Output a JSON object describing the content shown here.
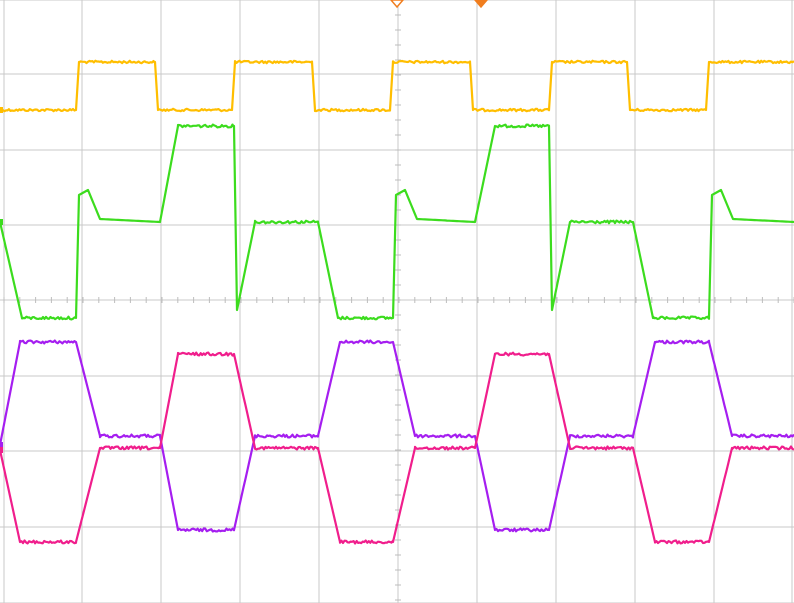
{
  "chart_data": {
    "type": "line",
    "title": "",
    "xlabel": "",
    "ylabel": "",
    "x_range": [
      0,
      794
    ],
    "grid": {
      "enabled": true,
      "color": "#c8c8c8",
      "vertical_divisions": [
        0,
        1,
        2,
        3,
        4,
        5,
        6,
        7,
        8,
        9,
        10
      ],
      "horizontal_divisions": [
        0,
        1,
        2,
        3,
        4,
        5,
        6,
        7,
        8
      ]
    },
    "trigger_markers": [
      {
        "name": "trigger-position-marker",
        "x": 397,
        "style": "hollow",
        "color": "#f07d1e"
      },
      {
        "name": "trigger-level-marker",
        "x": 481,
        "style": "filled",
        "color": "#f07d1e"
      }
    ],
    "series": [
      {
        "id": "ch1",
        "color": "#ffbe00",
        "noise": 1.2,
        "points": [
          [
            0,
            110
          ],
          [
            76,
            110
          ],
          [
            79,
            62
          ],
          [
            155,
            62
          ],
          [
            158,
            110
          ],
          [
            232,
            110
          ],
          [
            235,
            62
          ],
          [
            312,
            62
          ],
          [
            315,
            110
          ],
          [
            390,
            110
          ],
          [
            393,
            62
          ],
          [
            470,
            62
          ],
          [
            473,
            110
          ],
          [
            549,
            110
          ],
          [
            552,
            62
          ],
          [
            627,
            62
          ],
          [
            630,
            110
          ],
          [
            706,
            110
          ],
          [
            709,
            62
          ],
          [
            794,
            62
          ]
        ]
      },
      {
        "id": "ch2",
        "color": "#3cdc1e",
        "noise": 1.4,
        "points": [
          [
            0,
            222
          ],
          [
            22,
            318
          ],
          [
            76,
            318
          ],
          [
            79,
            195
          ],
          [
            88,
            190
          ],
          [
            100,
            219
          ],
          [
            160,
            222
          ],
          [
            178,
            126
          ],
          [
            234,
            126
          ],
          [
            237,
            310
          ],
          [
            255,
            222
          ],
          [
            318,
            222
          ],
          [
            338,
            318
          ],
          [
            393,
            318
          ],
          [
            396,
            195
          ],
          [
            405,
            190
          ],
          [
            417,
            219
          ],
          [
            475,
            222
          ],
          [
            495,
            126
          ],
          [
            549,
            126
          ],
          [
            552,
            310
          ],
          [
            570,
            222
          ],
          [
            633,
            222
          ],
          [
            653,
            318
          ],
          [
            709,
            318
          ],
          [
            712,
            195
          ],
          [
            721,
            190
          ],
          [
            733,
            219
          ],
          [
            794,
            222
          ]
        ]
      },
      {
        "id": "ch3",
        "color": "#a51ef0",
        "noise": 1.5,
        "points": [
          [
            0,
            445
          ],
          [
            20,
            342
          ],
          [
            76,
            342
          ],
          [
            100,
            436
          ],
          [
            160,
            436
          ],
          [
            178,
            530
          ],
          [
            234,
            530
          ],
          [
            255,
            436
          ],
          [
            318,
            436
          ],
          [
            340,
            342
          ],
          [
            393,
            342
          ],
          [
            415,
            436
          ],
          [
            475,
            436
          ],
          [
            495,
            530
          ],
          [
            549,
            530
          ],
          [
            570,
            436
          ],
          [
            633,
            436
          ],
          [
            655,
            342
          ],
          [
            709,
            342
          ],
          [
            732,
            436
          ],
          [
            794,
            436
          ]
        ]
      },
      {
        "id": "ch4",
        "color": "#f01e8c",
        "noise": 1.5,
        "points": [
          [
            0,
            450
          ],
          [
            20,
            542
          ],
          [
            76,
            542
          ],
          [
            100,
            448
          ],
          [
            160,
            448
          ],
          [
            178,
            354
          ],
          [
            234,
            354
          ],
          [
            255,
            448
          ],
          [
            318,
            448
          ],
          [
            340,
            542
          ],
          [
            393,
            542
          ],
          [
            415,
            448
          ],
          [
            475,
            448
          ],
          [
            495,
            354
          ],
          [
            549,
            354
          ],
          [
            570,
            448
          ],
          [
            633,
            448
          ],
          [
            655,
            542
          ],
          [
            709,
            542
          ],
          [
            732,
            448
          ],
          [
            794,
            448
          ]
        ]
      }
    ]
  }
}
